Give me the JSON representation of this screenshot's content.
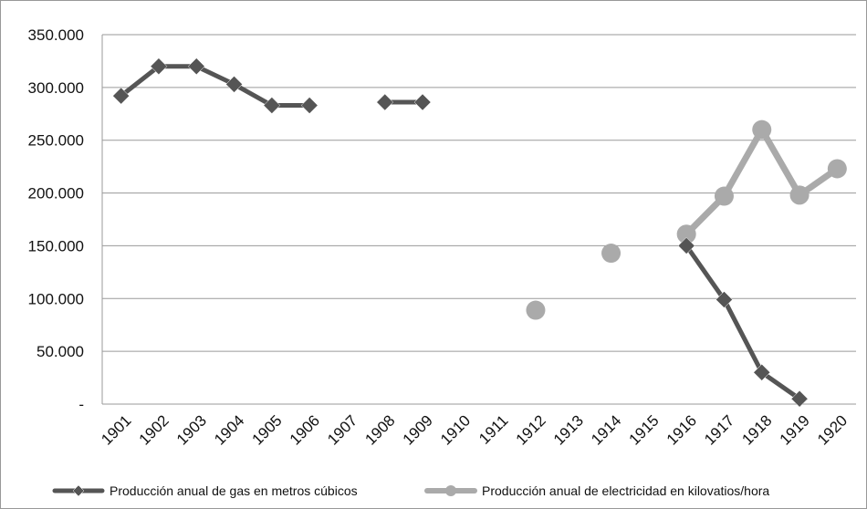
{
  "chart_data": {
    "type": "line",
    "title": "",
    "xlabel": "",
    "ylabel": "",
    "ylim": [
      0,
      350000
    ],
    "ytick_values": [
      0,
      50000,
      100000,
      150000,
      200000,
      250000,
      300000,
      350000
    ],
    "ytick_labels": [
      "-",
      "50.000",
      "100.000",
      "150.000",
      "200.000",
      "250.000",
      "300.000",
      "350.000"
    ],
    "categories": [
      "1901",
      "1902",
      "1903",
      "1904",
      "1905",
      "1906",
      "1907",
      "1908",
      "1909",
      "1910",
      "1911",
      "1912",
      "1913",
      "1914",
      "1915",
      "1916",
      "1917",
      "1918",
      "1919",
      "1920"
    ],
    "grid": "horizontal",
    "legend_position": "bottom",
    "series": [
      {
        "name": "Producción anual de gas en metros cúbicos",
        "color": "#555555",
        "marker": "diamond",
        "values": [
          292000,
          320000,
          320000,
          303000,
          283000,
          283000,
          null,
          286000,
          286000,
          null,
          null,
          null,
          null,
          null,
          null,
          150000,
          99000,
          30000,
          5000,
          null
        ]
      },
      {
        "name": "Producción anual de electricidad en kilovatios/hora",
        "color": "#aaaaaa",
        "marker": "circle",
        "values": [
          null,
          null,
          null,
          null,
          null,
          null,
          null,
          null,
          null,
          null,
          null,
          89000,
          null,
          143000,
          null,
          161000,
          197000,
          260000,
          198000,
          223000
        ]
      }
    ]
  }
}
